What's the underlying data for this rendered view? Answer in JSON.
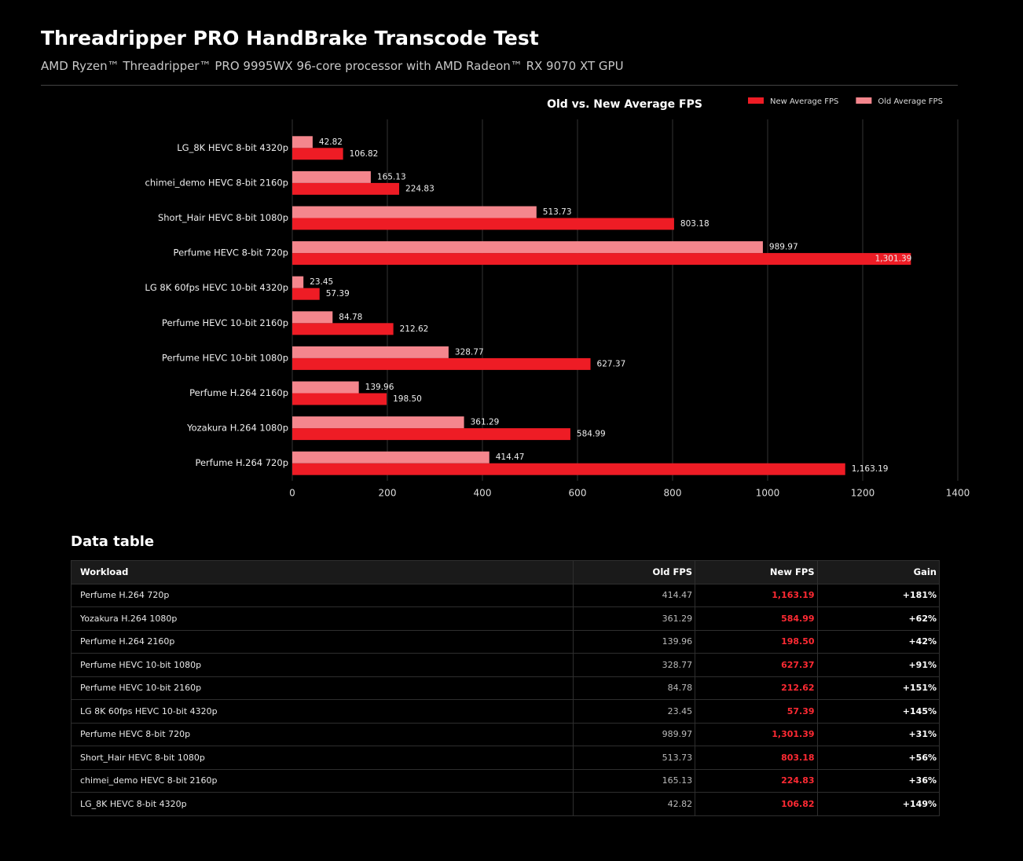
{
  "header": {
    "title": "Threadripper PRO HandBrake Transcode Test",
    "subtitle": "AMD Ryzen™ Threadripper™ PRO 9995WX 96-core processor with AMD Radeon™ RX 9070 XT GPU"
  },
  "chart_data": {
    "type": "hbar",
    "title": "Old vs. New Average FPS",
    "categories": [
      "LG_8K HEVC 8-bit 4320p",
      "chimei_demo HEVC 8-bit 2160p",
      "Short_Hair HEVC 8-bit 1080p",
      "Perfume HEVC 8-bit 720p",
      "LG 8K 60fps HEVC 10-bit 4320p",
      "Perfume HEVC 10-bit 2160p",
      "Perfume HEVC 10-bit 1080p",
      "Perfume H.264 2160p",
      "Yozakura H.264 1080p",
      "Perfume H.264 720p"
    ],
    "series": [
      {
        "name": "New Average FPS",
        "color": "#ee1c25",
        "values": [
          106.82,
          224.83,
          803.18,
          1301.39,
          57.39,
          212.62,
          627.37,
          198.5,
          584.99,
          1163.19
        ],
        "value_labels": [
          "106.82",
          "224.83",
          "803.18",
          "1,301.39",
          "57.39",
          "212.62",
          "627.37",
          "198.50",
          "584.99",
          "1,163.19"
        ]
      },
      {
        "name": "Old Average FPS",
        "color": "#f4868d",
        "values": [
          42.82,
          165.13,
          513.73,
          989.97,
          23.45,
          84.78,
          328.77,
          139.96,
          361.29,
          414.47
        ],
        "value_labels": [
          "42.82",
          "165.13",
          "513.73",
          "989.97",
          "23.45",
          "84.78",
          "328.77",
          "139.96",
          "361.29",
          "414.47"
        ]
      }
    ],
    "xlim": [
      0,
      1400
    ],
    "xticks": [
      0,
      200,
      400,
      600,
      800,
      1000,
      1200,
      1400
    ],
    "grid": true,
    "legend": "top-right"
  },
  "table": {
    "title": "Data table",
    "columns": [
      "Workload",
      "Old FPS",
      "New FPS",
      "Gain"
    ],
    "rows": [
      [
        "Perfume H.264 720p",
        "414.47",
        "1,163.19",
        "+181%"
      ],
      [
        "Yozakura H.264 1080p",
        "361.29",
        "584.99",
        "+62%"
      ],
      [
        "Perfume H.264 2160p",
        "139.96",
        "198.50",
        "+42%"
      ],
      [
        "Perfume HEVC 10-bit 1080p",
        "328.77",
        "627.37",
        "+91%"
      ],
      [
        "Perfume HEVC 10-bit 2160p",
        "84.78",
        "212.62",
        "+151%"
      ],
      [
        "LG 8K 60fps HEVC 10-bit 4320p",
        "23.45",
        "57.39",
        "+145%"
      ],
      [
        "Perfume HEVC 8-bit 720p",
        "989.97",
        "1,301.39",
        "+31%"
      ],
      [
        "Short_Hair HEVC 8-bit 1080p",
        "513.73",
        "803.18",
        "+56%"
      ],
      [
        "chimei_demo HEVC 8-bit 2160p",
        "165.13",
        "224.83",
        "+36%"
      ],
      [
        "LG_8K HEVC 8-bit 4320p",
        "42.82",
        "106.82",
        "+149%"
      ]
    ]
  }
}
